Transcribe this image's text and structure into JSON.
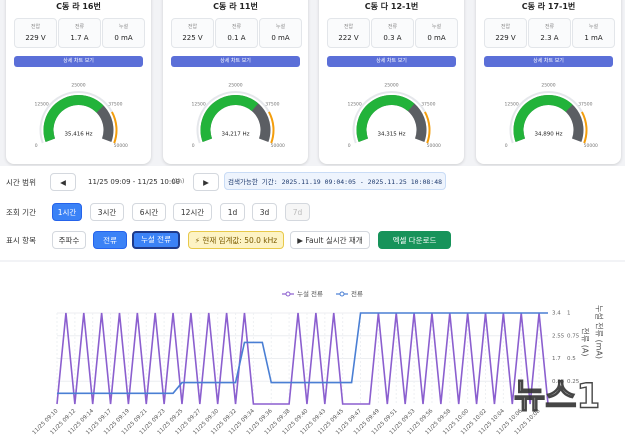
{
  "cards": [
    {
      "title": "C동 라 16번",
      "metrics": [
        {
          "label": "전압",
          "value": "229 V"
        },
        {
          "label": "전류",
          "value": "1.7 A"
        },
        {
          "label": "누설",
          "value": "0 mA"
        }
      ],
      "button": "상세 차트 보기",
      "gauge": {
        "value": 35416,
        "label": "35,416 Hz"
      }
    },
    {
      "title": "C동 라 11번",
      "metrics": [
        {
          "label": "전압",
          "value": "225 V"
        },
        {
          "label": "전류",
          "value": "0.1 A"
        },
        {
          "label": "누설",
          "value": "0 mA"
        }
      ],
      "button": "상세 차트 보기",
      "gauge": {
        "value": 34217,
        "label": "34,217 Hz"
      }
    },
    {
      "title": "C동 다 12-1번",
      "metrics": [
        {
          "label": "전압",
          "value": "222 V"
        },
        {
          "label": "전류",
          "value": "0.3 A"
        },
        {
          "label": "누설",
          "value": "0 mA"
        }
      ],
      "button": "상세 차트 보기",
      "gauge": {
        "value": 34315,
        "label": "34,315 Hz"
      }
    },
    {
      "title": "C동 라 17-1번",
      "metrics": [
        {
          "label": "전압",
          "value": "229 V"
        },
        {
          "label": "전류",
          "value": "2.3 A"
        },
        {
          "label": "누설",
          "value": "1 mA"
        }
      ],
      "button": "상세 차트 보기",
      "gauge": {
        "value": 34890,
        "label": "34,890 Hz"
      }
    }
  ],
  "gauge_scale": {
    "lim": [
      0,
      50000
    ],
    "ticks": [
      0,
      12500,
      25000,
      37500,
      50000
    ]
  },
  "controls": {
    "time_range": {
      "label": "시간 범위",
      "prev": "◀",
      "range": "11/25 09:09 - 11/25 10:09",
      "span": "(1h)",
      "next": "▶",
      "searchable": "검색가능한 기간: 2025.11.19 09:04:05 - 2025.11.25 10:08:48"
    },
    "period": {
      "label": "조회 기간",
      "options": [
        "1시간",
        "3시간",
        "6시간",
        "12시간",
        "1d",
        "3d",
        "7d"
      ],
      "active": 0,
      "disabled": [
        6
      ]
    },
    "display": {
      "label": "표시 항목",
      "items": [
        "주파수",
        "전류",
        "누설 전류"
      ],
      "active": [
        1,
        2
      ],
      "threshold": "⚡ 현재 임계값: 50.0 kHz",
      "fault": "▶ Fault 실시간 재개",
      "excel": "엑셀 다운로드"
    }
  },
  "chart_data": {
    "type": "line",
    "legend": "top",
    "grid": true,
    "categories": [
      "11/25 09:10",
      null,
      "11/25 09:12",
      null,
      "11/25 09:14",
      null,
      "11/25 09:17",
      null,
      "11/25 09:19",
      null,
      "11/25 09:21",
      null,
      "11/25 09:23",
      null,
      "11/25 09:25",
      null,
      "11/25 09:27",
      null,
      "11/25 09:30",
      null,
      "11/25 09:32",
      null,
      "11/25 09:34",
      null,
      "11/25 09:36",
      null,
      "11/25 09:38",
      null,
      "11/25 09:40",
      null,
      "11/25 09:43",
      null,
      "11/25 09:45",
      null,
      "11/25 09:47",
      null,
      "11/25 09:49",
      null,
      "11/25 09:51",
      null,
      "11/25 09:53",
      null,
      "11/25 09:56",
      null,
      "11/25 09:58",
      null,
      "11/25 10:00",
      null,
      "11/25 10:02",
      null,
      "11/25 10:04",
      null,
      "11/25 10:06",
      null,
      "11/25 10:08",
      null
    ],
    "series": [
      {
        "name": "누설 전류",
        "color": "#8b5fcf",
        "axis": "y2",
        "values": [
          0,
          1,
          0,
          1,
          0,
          1,
          0,
          1,
          0,
          1,
          0,
          1,
          0,
          1,
          0,
          1,
          0,
          1,
          0,
          1,
          0,
          1,
          0,
          0,
          0,
          0,
          0,
          1,
          0,
          1,
          0,
          1,
          0,
          0,
          0,
          0,
          1,
          0,
          1,
          0,
          1,
          0,
          1,
          0,
          1,
          0,
          1,
          0,
          1,
          0,
          1,
          0,
          1,
          0,
          1,
          0
        ]
      },
      {
        "name": "전류",
        "color": "#4a7fd4",
        "values": [
          0.4,
          0.4,
          0.4,
          0.4,
          0.4,
          0.4,
          0.4,
          0.4,
          0.4,
          0.4,
          0.4,
          0.4,
          0.4,
          0.4,
          0.8,
          0.8,
          0.8,
          0.8,
          0.8,
          0.8,
          0.8,
          2.3,
          2.3,
          2.3,
          0.8,
          0.8,
          0.8,
          0.8,
          0.8,
          0.8,
          0.8,
          0.8,
          0.8,
          0.8,
          3.4,
          3.4,
          3.4,
          3.4,
          3.4,
          3.4,
          3.4,
          3.4,
          3.4,
          3.4,
          3.4,
          3.4,
          3.4,
          3.4,
          3.4,
          3.4,
          3.4,
          3.4,
          3.4,
          3.4,
          3.4,
          3.4
        ]
      }
    ],
    "ylabel": "전류 (A)",
    "ylim": [
      0,
      3.4
    ],
    "yticks": [
      0.85,
      1.7,
      2.55,
      3.4
    ],
    "y2label": "누설 전류 (mA)",
    "y2lim": [
      0,
      1
    ],
    "y2ticks": [
      0.25,
      0.5,
      0.75,
      1
    ]
  },
  "watermark": "뉴스1"
}
